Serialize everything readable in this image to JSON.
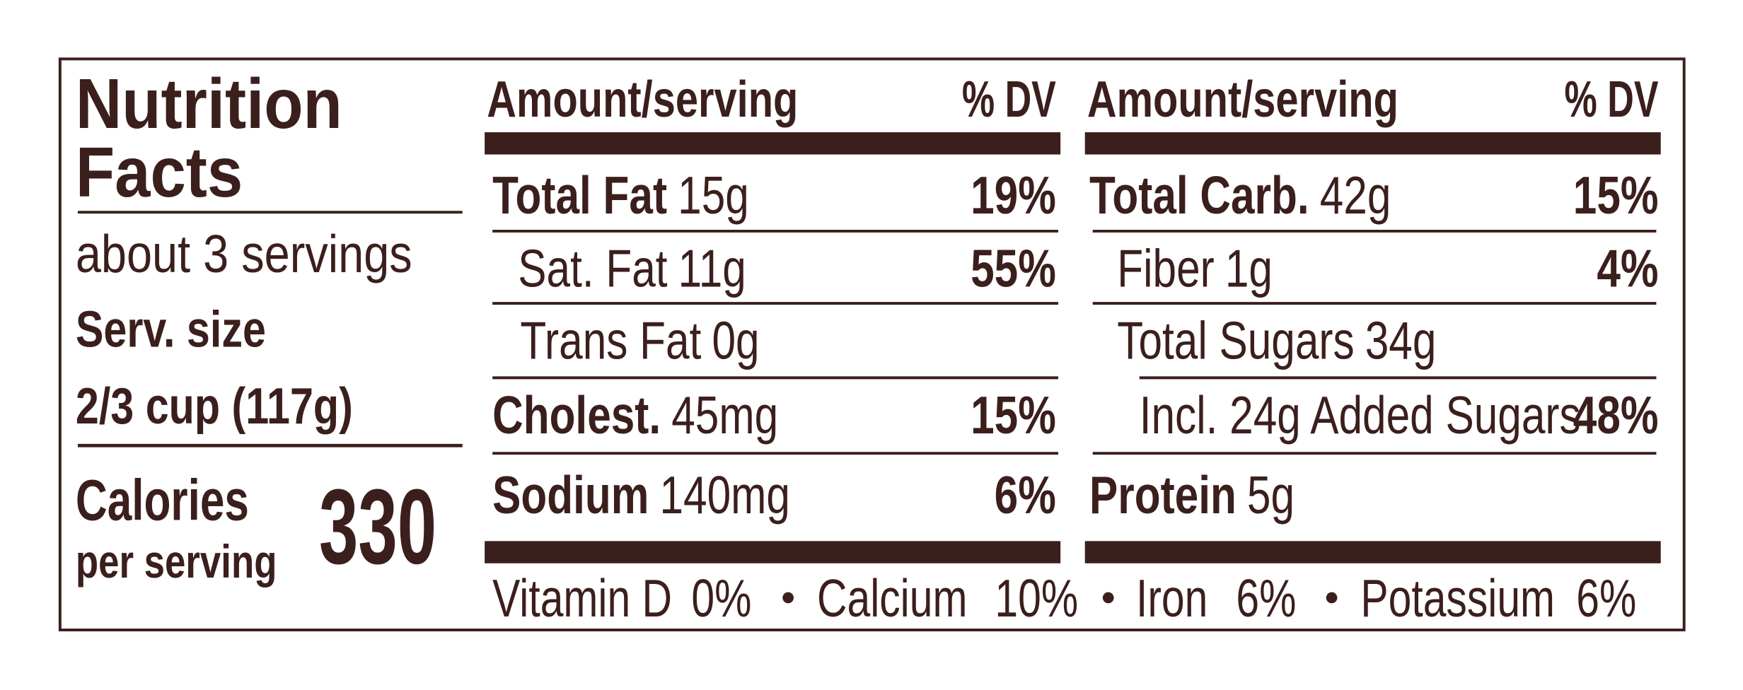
{
  "title": [
    "Nutrition",
    "Facts"
  ],
  "servings": "about 3 servings",
  "serving_size_label": "Serv. size",
  "serving_size": "2/3 cup (117g)",
  "calories_label": "Calories",
  "calories_sub": "per serving",
  "calories": "330",
  "columns": [
    {
      "header": "Amount/serving",
      "dv_header": "% DV",
      "rows": [
        {
          "name": "Total Fat",
          "amount": "15g",
          "dv": "19%"
        },
        {
          "name": "Sat. Fat",
          "amount": "11g",
          "dv": "55%"
        },
        {
          "name": "Trans Fat",
          "amount": "0g"
        },
        {
          "name": "Cholest.",
          "amount": "45mg",
          "dv": "15%"
        },
        {
          "name": "Sodium",
          "amount": "140mg",
          "dv": "6%"
        }
      ]
    },
    {
      "header": "Amount/serving",
      "dv_header": "% DV",
      "rows": [
        {
          "name": "Total Carb.",
          "amount": "42g",
          "dv": "15%"
        },
        {
          "name": "Fiber",
          "amount": "1g",
          "dv": "4%"
        },
        {
          "name": "Total Sugars",
          "amount": "34g"
        },
        {
          "name": "Incl. 24g Added Sugars",
          "dv": "48%"
        },
        {
          "name": "Protein",
          "amount": "5g"
        }
      ]
    }
  ],
  "vitamins": [
    {
      "name": "Vitamin D",
      "dv": "0%"
    },
    {
      "name": "Calcium",
      "dv": "10%"
    },
    {
      "name": "Iron",
      "dv": "6%"
    },
    {
      "name": "Potassium",
      "dv": "6%"
    }
  ]
}
